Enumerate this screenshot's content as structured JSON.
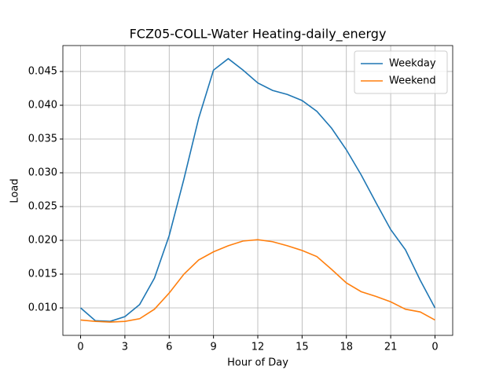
{
  "chart_data": {
    "type": "line",
    "title": "FCZ05-COLL-Water Heating-daily_energy",
    "x_label": "Hour of Day",
    "y_label": "Load",
    "x": [
      0,
      1,
      2,
      3,
      4,
      5,
      6,
      7,
      8,
      9,
      10,
      11,
      12,
      13,
      14,
      15,
      16,
      17,
      18,
      19,
      20,
      21,
      22,
      23,
      24
    ],
    "series": [
      {
        "name": "Weekday",
        "color": "#1f77b4",
        "values": [
          0.01,
          0.0081,
          0.008,
          0.0087,
          0.0105,
          0.0144,
          0.0207,
          0.0291,
          0.0381,
          0.0452,
          0.0469,
          0.0452,
          0.0433,
          0.0422,
          0.0416,
          0.0407,
          0.0391,
          0.0366,
          0.0334,
          0.0297,
          0.0256,
          0.0216,
          0.0186,
          0.0141,
          0.01
        ]
      },
      {
        "name": "Weekend",
        "color": "#ff7f0e",
        "values": [
          0.0082,
          0.008,
          0.0079,
          0.008,
          0.0084,
          0.0098,
          0.0122,
          0.015,
          0.0171,
          0.0183,
          0.0192,
          0.0199,
          0.0201,
          0.0198,
          0.0192,
          0.0185,
          0.0176,
          0.0157,
          0.0137,
          0.0124,
          0.0117,
          0.0109,
          0.0098,
          0.0094,
          0.0082
        ]
      }
    ],
    "xlim": [
      -1.2,
      25.2
    ],
    "xticks": [
      0,
      3,
      6,
      9,
      12,
      15,
      18,
      21,
      {
        "value": 24,
        "label": "0"
      }
    ],
    "ylim": [
      0.00593,
      0.04884
    ],
    "yticks": [
      {
        "value": 0.01,
        "label": "0.010"
      },
      {
        "value": 0.015,
        "label": "0.015"
      },
      {
        "value": 0.02,
        "label": "0.020"
      },
      {
        "value": 0.025,
        "label": "0.025"
      },
      {
        "value": 0.03,
        "label": "0.030"
      },
      {
        "value": 0.035,
        "label": "0.035"
      },
      {
        "value": 0.04,
        "label": "0.040"
      },
      {
        "value": 0.045,
        "label": "0.045"
      }
    ],
    "grid": true,
    "legend": "upper right"
  }
}
